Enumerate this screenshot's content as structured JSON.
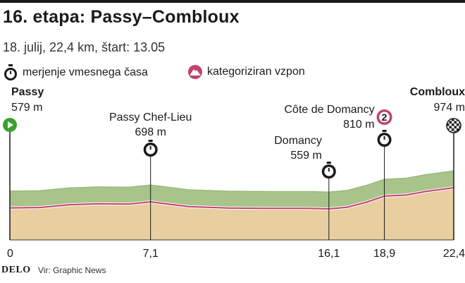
{
  "header": {
    "title": "16. etapa: Passy–Combloux",
    "subtitle": "18. julij, 22,4 km, štart: 13.05"
  },
  "legend": {
    "checkpoint_label": "merjenje vmesnega časa",
    "climb_label": "kategoriziran vzpon"
  },
  "colors": {
    "terrain": "#e8cfa0",
    "ridge": "#a9c48a",
    "ridge_edge": "#8fb070",
    "profile_line": "#c0416f",
    "start": "#37a12c",
    "climb": "#c0416f"
  },
  "footer": {
    "logo": "DELO",
    "source": "Vir: Graphic News"
  },
  "chart_data": {
    "type": "area",
    "xlabel": "",
    "ylabel": "",
    "x_ticks": [
      "0",
      "7,1",
      "16,1",
      "18,9",
      "22,4"
    ],
    "profile": {
      "x": [
        0,
        1.5,
        3,
        4.5,
        6,
        7.1,
        9,
        11,
        13,
        15,
        16.1,
        17,
        18,
        18.9,
        20,
        21,
        22.4
      ],
      "y": [
        579,
        585,
        640,
        660,
        655,
        698,
        605,
        575,
        570,
        568,
        559,
        590,
        690,
        810,
        830,
        900,
        974
      ]
    },
    "points": [
      {
        "km": 0,
        "name": "Passy",
        "elev": "579 m",
        "icon": "start"
      },
      {
        "km": 7.1,
        "name": "Passy Chef-Lieu",
        "elev": "698 m",
        "icon": "checkpoint"
      },
      {
        "km": 16.1,
        "name": "Domancy",
        "elev": "559 m",
        "icon": "checkpoint"
      },
      {
        "km": 18.9,
        "name": "Côte de Domancy",
        "elev": "810 m",
        "icon": "checkpoint",
        "climb_category": "2"
      },
      {
        "km": 22.4,
        "name": "Combloux",
        "elev": "974 m",
        "icon": "finish"
      }
    ]
  }
}
